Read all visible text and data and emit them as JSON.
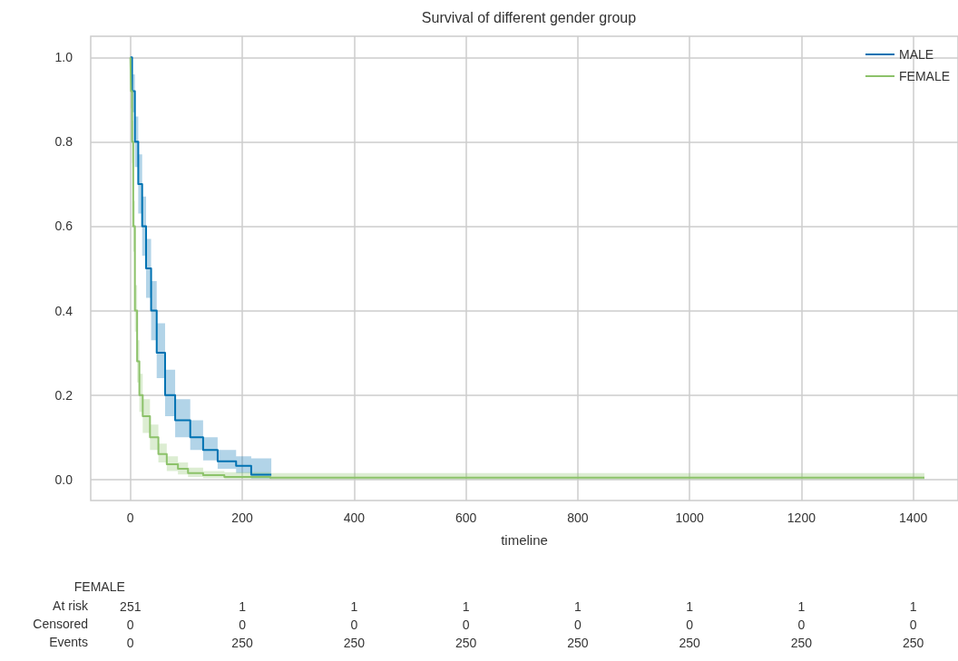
{
  "chart_data": {
    "type": "step",
    "title": "Survival of different gender group",
    "xlabel": "timeline",
    "xlim": [
      -71,
      1480
    ],
    "ylim": [
      -0.05,
      1.05
    ],
    "xticks": [
      0,
      200,
      400,
      600,
      800,
      1000,
      1200,
      1400
    ],
    "yticks": [
      {
        "value": 0,
        "label": "0.0"
      },
      {
        "value": 0.2,
        "label": "0.2"
      },
      {
        "value": 0.4,
        "label": "0.4"
      },
      {
        "value": 0.6,
        "label": "0.6"
      },
      {
        "value": 0.8,
        "label": "0.8"
      },
      {
        "value": 1,
        "label": "1.0"
      }
    ],
    "grid": true,
    "legend": "top right",
    "line_style": "solid",
    "series": [
      {
        "name": "MALE",
        "color": "#0072b2",
        "x": [
          0,
          3,
          8,
          14,
          21,
          28,
          37,
          47,
          62,
          80,
          107,
          130,
          156,
          189,
          216,
          252
        ],
        "values": [
          1.0,
          0.92,
          0.8,
          0.7,
          0.6,
          0.5,
          0.4,
          0.3,
          0.2,
          0.14,
          0.1,
          0.07,
          0.043,
          0.032,
          0.011,
          0.011
        ],
        "upper": [
          1.0,
          0.96,
          0.86,
          0.77,
          0.67,
          0.57,
          0.47,
          0.37,
          0.26,
          0.19,
          0.14,
          0.1,
          0.07,
          0.055,
          0.05,
          0.05
        ],
        "lower": [
          1.0,
          0.87,
          0.74,
          0.63,
          0.53,
          0.43,
          0.33,
          0.24,
          0.15,
          0.1,
          0.07,
          0.045,
          0.025,
          0.015,
          0.002,
          0.002
        ]
      },
      {
        "name": "FEMALE",
        "color": "#8cc26a",
        "x": [
          0,
          1,
          3,
          5,
          8,
          12,
          16,
          22,
          35,
          50,
          65,
          85,
          103,
          130,
          168,
          250,
          1420
        ],
        "values": [
          1.0,
          0.92,
          0.8,
          0.6,
          0.4,
          0.28,
          0.2,
          0.15,
          0.1,
          0.06,
          0.036,
          0.025,
          0.015,
          0.01,
          0.006,
          0.004,
          0.004
        ],
        "upper": [
          1.0,
          0.95,
          0.85,
          0.66,
          0.46,
          0.33,
          0.25,
          0.19,
          0.13,
          0.085,
          0.055,
          0.04,
          0.028,
          0.02,
          0.017,
          0.015,
          0.015
        ],
        "lower": [
          1.0,
          0.88,
          0.75,
          0.54,
          0.35,
          0.23,
          0.16,
          0.11,
          0.07,
          0.04,
          0.02,
          0.012,
          0.006,
          0.003,
          0.001,
          0,
          0
        ]
      }
    ],
    "annotations": [
      "FEMALE",
      "At risk",
      "Censored",
      "Events",
      "251",
      "1",
      "1",
      "1",
      "1",
      "1",
      "1",
      "1",
      "0",
      "0",
      "0",
      "0",
      "0",
      "0",
      "0",
      "0",
      "0",
      "250",
      "250",
      "250",
      "250",
      "250",
      "250",
      "250"
    ]
  }
}
